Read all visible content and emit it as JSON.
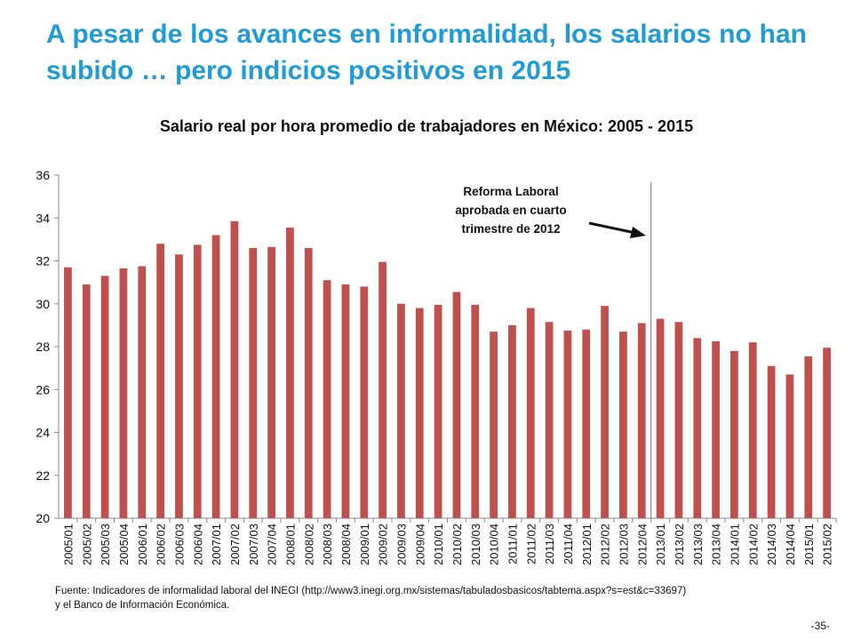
{
  "slide": {
    "title": "A pesar de los avances en informalidad,  los salarios no han subido … pero indicios positivos en 2015",
    "page_number": "-35-",
    "source_line1": "Fuente: Indicadores de informalidad laboral del INEGI (http://www3.inegi.org.mx/sistemas/tabuladosbasicos/tabtema.aspx?s=est&c=33697)",
    "source_line2": "y el Banco de Información Económica."
  },
  "colors": {
    "title": "#1F9BD7",
    "bar": "#C0504D",
    "axis": "#888888"
  },
  "chart_data": {
    "type": "bar",
    "title": "Salario real por hora promedio de trabajadores  en México: 2005 - 2015",
    "xlabel": "",
    "ylabel": "",
    "ylim": [
      20,
      36
    ],
    "yticks": [
      20,
      22,
      24,
      26,
      28,
      30,
      32,
      34,
      36
    ],
    "grid": false,
    "categories": [
      "2005/01",
      "2005/02",
      "2005/03",
      "2005/04",
      "2006/01",
      "2006/02",
      "2006/03",
      "2006/04",
      "2007/01",
      "2007/02",
      "2007/03",
      "2007/04",
      "2008/01",
      "2008/02",
      "2008/03",
      "2008/04",
      "2009/01",
      "2009/02",
      "2009/03",
      "2009/04",
      "2010/01",
      "2010/02",
      "2010/03",
      "2010/04",
      "2011/01",
      "2011/02",
      "2011/03",
      "2011/04",
      "2012/01",
      "2012/02",
      "2012/03",
      "2012/04",
      "2013/01",
      "2013/02",
      "2013/03",
      "2013/04",
      "2014/01",
      "2014/02",
      "2014/03",
      "2014/04",
      "2015/01",
      "2015/02"
    ],
    "values": [
      31.7,
      30.9,
      31.3,
      31.65,
      31.75,
      32.8,
      32.3,
      32.75,
      33.2,
      33.85,
      32.6,
      32.65,
      33.55,
      32.6,
      31.1,
      30.9,
      30.8,
      31.95,
      30.0,
      29.8,
      29.95,
      30.55,
      29.95,
      28.7,
      29.0,
      29.8,
      29.15,
      28.75,
      28.8,
      29.9,
      28.7,
      29.1,
      29.3,
      29.15,
      28.4,
      28.25,
      27.8,
      28.2,
      27.1,
      26.7,
      27.55,
      27.95
    ],
    "reference_line": {
      "after_category": "2012/04"
    },
    "annotation": {
      "lines": [
        "Reforma Laboral",
        "aprobada en cuarto",
        "trimestre de 2012"
      ]
    }
  }
}
